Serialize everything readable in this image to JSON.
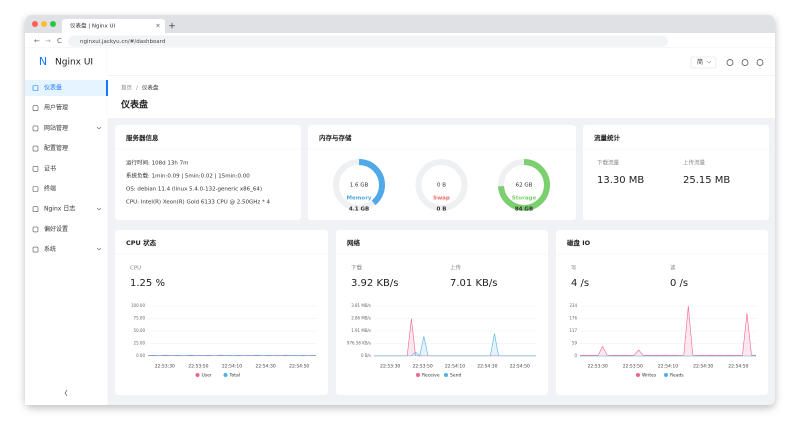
{
  "browser": {
    "tab_title": "仪表盘 | Nginx UI",
    "url": "nginxui.jackyu.cn/#/dashboard"
  },
  "sidebar": {
    "logo": "Nginx UI",
    "items": [
      "仪表盘",
      "用户管理",
      "网站管理",
      "配置管理",
      "证书",
      "终端",
      "Nginx 日志",
      "偏好设置",
      "系统"
    ]
  },
  "header": {
    "language": "简"
  },
  "breadcrumb": [
    "首页",
    "/",
    "仪表盘"
  ],
  "page_title": "仪表盘",
  "server_info": {
    "title": "服务器信息",
    "lines": [
      "运行时间: 108d 13h 7m",
      "系统负载: 1min:0.09 | 5min:0.02 | 15min:0.00",
      "OS: debian 11.4 (linux 5.4.0-132-generic x86_64)",
      "CPU: Intel(R) Xeon(R) Gold 6133 CPU @ 2.50GHz * 4"
    ]
  },
  "memory_storage": {
    "title": "内存与存储",
    "gauges": [
      {
        "label": "Memory",
        "used": "1.6 GB",
        "total": "4.1 GB",
        "percent": 39,
        "color": "#4fa8e8"
      },
      {
        "label": "Swap",
        "used": "0 B",
        "total": "0 B",
        "percent": 0,
        "color": "#f06a6a"
      },
      {
        "label": "Storage",
        "used": "62 GB",
        "total": "84 GB",
        "percent": 74,
        "color": "#7ccf6e"
      }
    ]
  },
  "traffic": {
    "title": "流量统计",
    "stats": [
      {
        "label": "下载流量",
        "value": "13.30 MB"
      },
      {
        "label": "上传流量",
        "value": "25.15 MB"
      }
    ]
  },
  "charts": [
    {
      "title": "CPU 状态",
      "stats": [
        {
          "label": "CPU",
          "value": "1.25 %"
        }
      ],
      "ylim": [
        0,
        100
      ],
      "yticks": [
        {
          "value": 100,
          "label": "100.00"
        },
        {
          "value": 75,
          "label": "75.00"
        },
        {
          "value": 50,
          "label": "50.00"
        },
        {
          "value": 25,
          "label": "25.00"
        },
        {
          "value": 0,
          "label": "0.00"
        }
      ],
      "xticks": [
        "22:53:30",
        "22:53:50",
        "22:54:10",
        "22:54:30",
        "22:54:50"
      ],
      "series": [
        {
          "name": "User",
          "color": "#f06292",
          "values": [
            0.5,
            0.8,
            0.6,
            0.5,
            1.2,
            0.6,
            0.5,
            0.7,
            0.5,
            0.6,
            0.9,
            0.5,
            0.6,
            0.5,
            0.8,
            0.5,
            0.6,
            1.1,
            0.5,
            0.6,
            0.5,
            0.7,
            0.5,
            0.6,
            0.5,
            0.9,
            0.6,
            0.5,
            0.7,
            0.5,
            0.6,
            0.5,
            1.0,
            0.5,
            0.6,
            0.5,
            0.7,
            0.5,
            0.6,
            0.5
          ]
        },
        {
          "name": "Total",
          "color": "#4fb0e8",
          "values": [
            1.0,
            1.4,
            1.1,
            1.0,
            2.0,
            1.2,
            1.0,
            1.3,
            1.0,
            1.1,
            1.6,
            1.0,
            1.2,
            1.0,
            1.5,
            1.0,
            1.1,
            1.9,
            1.0,
            1.2,
            1.0,
            1.3,
            1.0,
            1.1,
            1.0,
            1.6,
            1.2,
            1.0,
            1.3,
            1.0,
            1.1,
            1.0,
            1.8,
            1.0,
            1.2,
            1.0,
            1.3,
            1.0,
            1.1,
            1.25
          ]
        }
      ]
    },
    {
      "title": "网络",
      "stats": [
        {
          "label": "下载",
          "value": "3.92 KB/s"
        },
        {
          "label": "上传",
          "value": "7.01 KB/s"
        }
      ],
      "ylim": [
        0,
        3.81
      ],
      "yticks": [
        {
          "value": 3.81,
          "label": "3.81 MB/s"
        },
        {
          "value": 2.86,
          "label": "2.86 MB/s"
        },
        {
          "value": 1.91,
          "label": "1.91 MB/s"
        },
        {
          "value": 0.9537,
          "label": "976.56 KB/s"
        },
        {
          "value": 0,
          "label": "0 B/s"
        }
      ],
      "xticks": [
        "22:53:30",
        "22:53:50",
        "22:54:10",
        "22:54:30",
        "22:54:50"
      ],
      "series": [
        {
          "name": "Receive",
          "color": "#f06292",
          "values": [
            0.01,
            0.01,
            0.01,
            0.01,
            0.01,
            0.01,
            0.01,
            0.01,
            0.01,
            2.85,
            0.02,
            0.01,
            0.01,
            0.01,
            0.01,
            0.01,
            0.01,
            0.01,
            0.01,
            0.01,
            0.01,
            0.01,
            0.01,
            0.01,
            0.01,
            0.01,
            0.01,
            0.01,
            0.01,
            0.01,
            0.01,
            0.01,
            0.01,
            0.01,
            0.01,
            0.01,
            0.01,
            0.01,
            0.01,
            0.01
          ]
        },
        {
          "name": "Send",
          "color": "#4fb0e8",
          "values": [
            0.01,
            0.01,
            0.01,
            0.01,
            0.01,
            0.01,
            0.01,
            0.01,
            0.01,
            0.01,
            0.3,
            0.01,
            1.5,
            0.02,
            0.01,
            0.01,
            0.01,
            0.01,
            0.01,
            0.01,
            0.01,
            0.01,
            0.01,
            0.01,
            0.01,
            0.01,
            0.01,
            0.01,
            0.01,
            1.7,
            0.02,
            0.01,
            0.01,
            0.01,
            0.01,
            0.01,
            0.01,
            0.01,
            0.01,
            0.01
          ]
        }
      ]
    },
    {
      "title": "磁盘 IO",
      "stats": [
        {
          "label": "写",
          "value": "4 /s"
        },
        {
          "label": "读",
          "value": "0 /s"
        }
      ],
      "ylim": [
        0,
        234
      ],
      "yticks": [
        234,
        176,
        117,
        59,
        0
      ],
      "xticks": [
        "22:53:30",
        "22:53:50",
        "22:54:10",
        "22:54:30",
        "22:54:50"
      ],
      "series": [
        {
          "name": "Writes",
          "color": "#f06292",
          "values": [
            3,
            4,
            3,
            4,
            3,
            45,
            4,
            3,
            4,
            3,
            4,
            3,
            4,
            28,
            3,
            4,
            3,
            4,
            3,
            4,
            3,
            4,
            3,
            4,
            234,
            4,
            3,
            4,
            3,
            4,
            3,
            4,
            3,
            4,
            3,
            4,
            3,
            200,
            4,
            4
          ]
        },
        {
          "name": "Reads",
          "color": "#4fb0e8",
          "values": [
            0,
            0,
            0,
            0,
            0,
            0,
            0,
            0,
            0,
            0,
            0,
            0,
            0,
            0,
            0,
            0,
            0,
            0,
            0,
            0,
            0,
            0,
            0,
            0,
            0,
            0,
            0,
            0,
            0,
            0,
            0,
            0,
            0,
            0,
            0,
            0,
            0,
            0,
            0,
            0
          ]
        }
      ]
    }
  ]
}
